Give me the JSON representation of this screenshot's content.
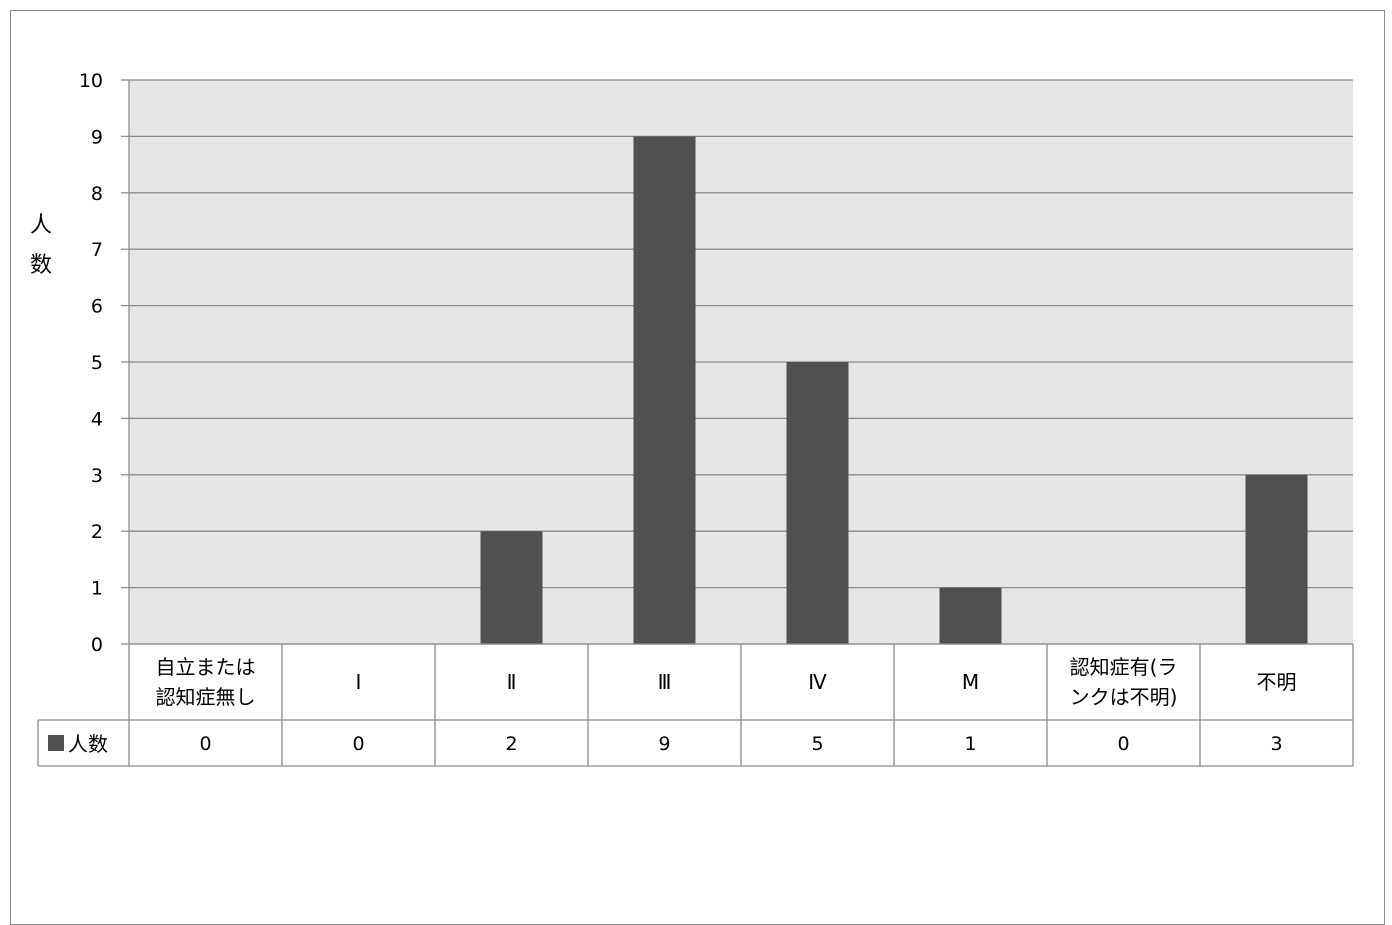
{
  "chart_data": {
    "type": "bar",
    "title": "",
    "xlabel": "",
    "ylabel": "人数",
    "ylim": [
      0,
      10
    ],
    "yticks": [
      0,
      1,
      2,
      3,
      4,
      5,
      6,
      7,
      8,
      9,
      10
    ],
    "grid": true,
    "legend_in_table": true,
    "categories": [
      [
        "自立または",
        "認知症無し"
      ],
      [
        "Ⅰ"
      ],
      [
        "Ⅱ"
      ],
      [
        "Ⅲ"
      ],
      [
        "Ⅳ"
      ],
      [
        "M"
      ],
      [
        "認知症有(ラ",
        "ンクは不明)"
      ],
      [
        "不明"
      ]
    ],
    "series": [
      {
        "name": "人数",
        "values": [
          0,
          0,
          2,
          9,
          5,
          1,
          0,
          3
        ]
      }
    ],
    "colors": {
      "bar": "#505050",
      "plot_bg": "#e6e6e6",
      "grid": "#8c8c8c",
      "axis": "#8c8c8c",
      "legend_marker": "#505050"
    }
  }
}
